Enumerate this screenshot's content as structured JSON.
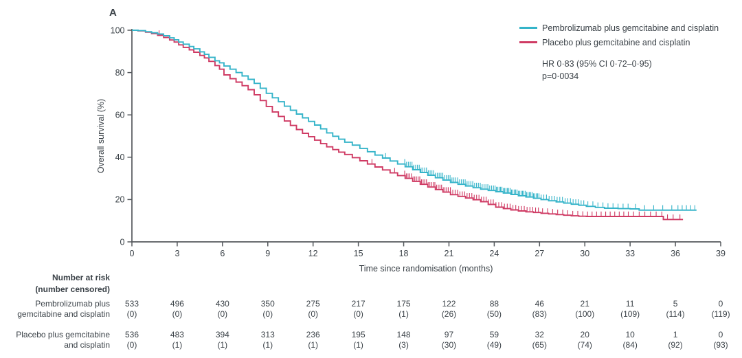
{
  "panel_label": "A",
  "legend": {
    "entries": [
      {
        "label": "Pembrolizumab plus gemcitabine and cisplatin",
        "color": "#35b4c9"
      },
      {
        "label": "Placebo plus gemcitabine and cisplatin",
        "color": "#cf3a63"
      }
    ],
    "hr_line1": "HR 0·83 (95% CI 0·72–0·95)",
    "hr_line2": "p=0·0034"
  },
  "chart_data": {
    "type": "line",
    "subtype": "kaplan-meier-step",
    "title": "",
    "xlabel": "Time since randomisation (months)",
    "ylabel": "Overall survival (%)",
    "xlim": [
      0,
      39
    ],
    "ylim": [
      0,
      100
    ],
    "xticks": [
      0,
      3,
      6,
      9,
      12,
      15,
      18,
      21,
      24,
      27,
      30,
      33,
      36,
      39
    ],
    "yticks": [
      0,
      20,
      40,
      60,
      80,
      100
    ],
    "grid": false,
    "legend_position": "top-right",
    "series": [
      {
        "name": "Pembrolizumab plus gemcitabine and cisplatin",
        "color": "#35b4c9",
        "end_month": 37.4,
        "points": [
          [
            0,
            100
          ],
          [
            0.4,
            99.8
          ],
          [
            0.9,
            99.3
          ],
          [
            1.3,
            98.8
          ],
          [
            1.7,
            98.2
          ],
          [
            2.1,
            97.4
          ],
          [
            2.5,
            96.4
          ],
          [
            2.8,
            95.5
          ],
          [
            3.1,
            94.4
          ],
          [
            3.4,
            93.4
          ],
          [
            3.8,
            92.3
          ],
          [
            4.1,
            91.2
          ],
          [
            4.5,
            89.8
          ],
          [
            4.8,
            88.6
          ],
          [
            5.1,
            87.2
          ],
          [
            5.5,
            85.6
          ],
          [
            5.8,
            84.6
          ],
          [
            6.1,
            83.1
          ],
          [
            6.5,
            81.6
          ],
          [
            6.9,
            80.0
          ],
          [
            7.3,
            78.4
          ],
          [
            7.7,
            76.8
          ],
          [
            8.1,
            74.9
          ],
          [
            8.5,
            72.6
          ],
          [
            8.9,
            70.2
          ],
          [
            9.3,
            68.1
          ],
          [
            9.7,
            66.2
          ],
          [
            10.1,
            64.1
          ],
          [
            10.5,
            62.2
          ],
          [
            10.9,
            60.4
          ],
          [
            11.3,
            58.6
          ],
          [
            11.7,
            56.9
          ],
          [
            12.1,
            55.2
          ],
          [
            12.5,
            53.4
          ],
          [
            12.9,
            51.5
          ],
          [
            13.3,
            49.9
          ],
          [
            13.7,
            48.5
          ],
          [
            14.1,
            47.1
          ],
          [
            14.6,
            45.7
          ],
          [
            15.1,
            44.2
          ],
          [
            15.6,
            42.6
          ],
          [
            16.1,
            41.0
          ],
          [
            16.6,
            39.6
          ],
          [
            17.1,
            38.2
          ],
          [
            17.6,
            36.8
          ],
          [
            18.1,
            35.5
          ],
          [
            18.6,
            34.1
          ],
          [
            19.1,
            32.8
          ],
          [
            19.6,
            31.5
          ],
          [
            20.1,
            30.3
          ],
          [
            20.6,
            29.2
          ],
          [
            21.1,
            28.1
          ],
          [
            21.6,
            27.2
          ],
          [
            22.1,
            26.4
          ],
          [
            22.6,
            25.6
          ],
          [
            23.1,
            24.9
          ],
          [
            23.6,
            24.3
          ],
          [
            24.1,
            23.7
          ],
          [
            24.6,
            23.1
          ],
          [
            25.1,
            22.4
          ],
          [
            25.6,
            21.8
          ],
          [
            26.1,
            21.2
          ],
          [
            26.6,
            20.6
          ],
          [
            27.1,
            20.0
          ],
          [
            27.6,
            19.4
          ],
          [
            28.1,
            18.9
          ],
          [
            28.6,
            18.3
          ],
          [
            29.1,
            17.8
          ],
          [
            29.6,
            17.3
          ],
          [
            30.1,
            16.8
          ],
          [
            30.7,
            16.3
          ],
          [
            31.3,
            15.9
          ],
          [
            32.2,
            15.7
          ],
          [
            33.0,
            15.6
          ],
          [
            33.6,
            15.0
          ]
        ]
      },
      {
        "name": "Placebo plus gemcitabine and cisplatin",
        "color": "#cf3a63",
        "end_month": 36.5,
        "points": [
          [
            0,
            100
          ],
          [
            0.4,
            99.7
          ],
          [
            0.9,
            99.1
          ],
          [
            1.3,
            98.4
          ],
          [
            1.7,
            97.6
          ],
          [
            2.1,
            96.6
          ],
          [
            2.5,
            95.4
          ],
          [
            2.8,
            94.4
          ],
          [
            3.1,
            93.1
          ],
          [
            3.4,
            91.9
          ],
          [
            3.8,
            90.7
          ],
          [
            4.1,
            89.6
          ],
          [
            4.5,
            88.1
          ],
          [
            4.8,
            86.9
          ],
          [
            5.1,
            85.3
          ],
          [
            5.5,
            83.3
          ],
          [
            5.8,
            81.6
          ],
          [
            6.1,
            78.9
          ],
          [
            6.5,
            77.1
          ],
          [
            6.9,
            75.5
          ],
          [
            7.3,
            73.8
          ],
          [
            7.7,
            71.9
          ],
          [
            8.1,
            69.5
          ],
          [
            8.5,
            66.8
          ],
          [
            8.9,
            64.0
          ],
          [
            9.3,
            61.4
          ],
          [
            9.7,
            59.3
          ],
          [
            10.1,
            57.1
          ],
          [
            10.5,
            55.0
          ],
          [
            10.9,
            53.1
          ],
          [
            11.3,
            51.3
          ],
          [
            11.7,
            49.7
          ],
          [
            12.1,
            48.1
          ],
          [
            12.5,
            46.4
          ],
          [
            12.9,
            44.9
          ],
          [
            13.3,
            43.6
          ],
          [
            13.7,
            42.4
          ],
          [
            14.1,
            41.3
          ],
          [
            14.6,
            39.8
          ],
          [
            15.1,
            38.3
          ],
          [
            15.6,
            36.8
          ],
          [
            16.1,
            35.4
          ],
          [
            16.6,
            34.0
          ],
          [
            17.1,
            32.6
          ],
          [
            17.6,
            31.3
          ],
          [
            18.1,
            30.0
          ],
          [
            18.6,
            28.6
          ],
          [
            19.1,
            27.2
          ],
          [
            19.6,
            25.9
          ],
          [
            20.1,
            24.7
          ],
          [
            20.6,
            23.5
          ],
          [
            21.1,
            22.3
          ],
          [
            21.6,
            21.5
          ],
          [
            22.1,
            20.7
          ],
          [
            22.6,
            19.9
          ],
          [
            23.1,
            19.0
          ],
          [
            23.6,
            17.7
          ],
          [
            24.1,
            16.4
          ],
          [
            24.6,
            15.7
          ],
          [
            25.1,
            15.1
          ],
          [
            25.6,
            14.6
          ],
          [
            26.1,
            14.2
          ],
          [
            26.6,
            13.9
          ],
          [
            27.1,
            13.5
          ],
          [
            27.6,
            13.2
          ],
          [
            28.1,
            12.9
          ],
          [
            28.6,
            12.6
          ],
          [
            29.1,
            12.3
          ],
          [
            29.6,
            12.1
          ],
          [
            30.1,
            12.0
          ],
          [
            35.0,
            12.0
          ],
          [
            35.2,
            10.6
          ]
        ]
      }
    ]
  },
  "risk_table": {
    "header_line1": "Number at risk",
    "header_line2": "(number censored)",
    "timepoints": [
      0,
      3,
      6,
      9,
      12,
      15,
      18,
      21,
      24,
      27,
      30,
      33,
      36,
      39
    ],
    "rows": [
      {
        "label_line1": "Pembrolizumab plus",
        "label_line2": "gemcitabine and cisplatin",
        "at_risk": [
          533,
          496,
          430,
          350,
          275,
          217,
          175,
          122,
          88,
          46,
          21,
          11,
          5,
          0
        ],
        "censored": [
          0,
          0,
          0,
          0,
          0,
          0,
          1,
          26,
          50,
          83,
          100,
          109,
          114,
          119
        ]
      },
      {
        "label_line1": "Placebo plus gemcitabine",
        "label_line2": "and cisplatin",
        "at_risk": [
          536,
          483,
          394,
          313,
          236,
          195,
          148,
          97,
          59,
          32,
          20,
          10,
          1,
          0
        ],
        "censored": [
          0,
          1,
          1,
          1,
          1,
          1,
          3,
          30,
          49,
          65,
          74,
          84,
          92,
          93
        ]
      }
    ]
  },
  "colors": {
    "pembrolizumab": "#35b4c9",
    "placebo": "#cf3a63",
    "text": "#3a4147",
    "axis": "#54585c"
  }
}
